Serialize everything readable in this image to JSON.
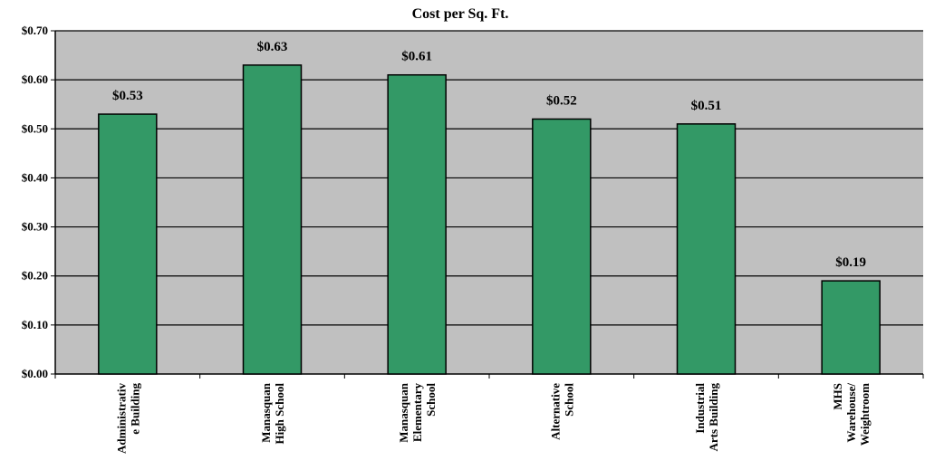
{
  "chart_data": {
    "type": "bar",
    "title": "Cost per Sq. Ft.",
    "xlabel": "",
    "ylabel": "",
    "categories": [
      [
        "Administrativ",
        "e Building"
      ],
      [
        "Manasquan",
        "High School"
      ],
      [
        "Manasquan",
        "Elementary",
        "School"
      ],
      [
        "Alternative",
        "School"
      ],
      [
        "Industrial",
        "Arts Building"
      ],
      [
        "MHS",
        "Warehouse/",
        "Weightroom"
      ]
    ],
    "values": [
      0.53,
      0.63,
      0.61,
      0.52,
      0.51,
      0.19
    ],
    "value_labels": [
      "$0.53",
      "$0.63",
      "$0.61",
      "$0.52",
      "$0.51",
      "$0.19"
    ],
    "ylim": [
      0,
      0.7
    ],
    "yticks": [
      0,
      0.1,
      0.2,
      0.3,
      0.4,
      0.5,
      0.6,
      0.7
    ],
    "ytick_labels": [
      "$0.00",
      "$0.10",
      "$0.20",
      "$0.30",
      "$0.40",
      "$0.50",
      "$0.60",
      "$0.70"
    ],
    "grid": true,
    "legend": "none",
    "colors": {
      "bar": "#339966",
      "bar_edge": "#000000",
      "plot_bg": "#c0c0c0",
      "gridline": "#000000"
    }
  }
}
